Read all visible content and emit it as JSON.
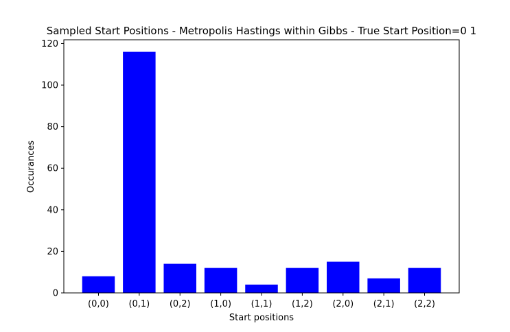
{
  "chart_data": {
    "type": "bar",
    "title": "Sampled Start Positions - Metropolis Hastings within Gibbs - True Start Position=0 1",
    "xlabel": "Start positions",
    "ylabel": "Occurances",
    "categories": [
      "(0,0)",
      "(0,1)",
      "(0,2)",
      "(1,0)",
      "(1,1)",
      "(1,2)",
      "(2,0)",
      "(2,1)",
      "(2,2)"
    ],
    "values": [
      8,
      116,
      14,
      12,
      4,
      12,
      15,
      7,
      12
    ],
    "ylim": [
      0,
      121.8
    ],
    "yticks": [
      0,
      20,
      40,
      60,
      80,
      100,
      120
    ],
    "grid": false,
    "legend": "none",
    "bar_color": "#0000ff"
  }
}
